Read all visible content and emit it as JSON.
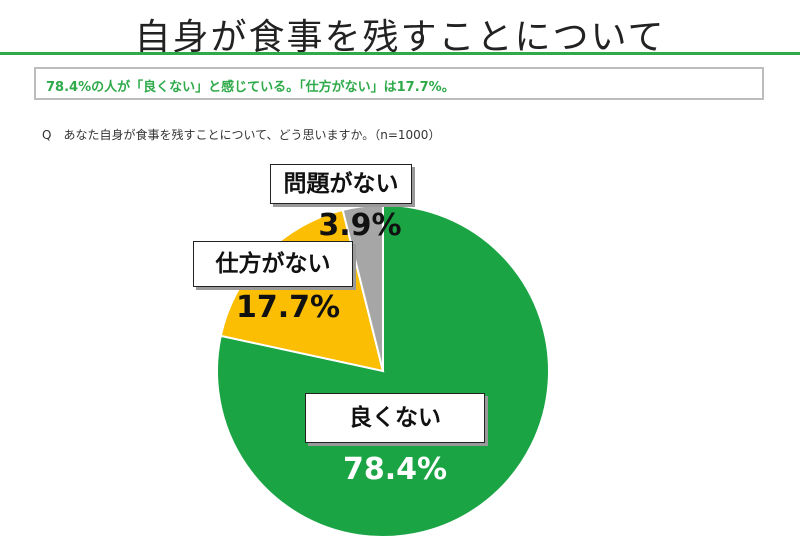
{
  "header": {
    "title": "自身が食事を残すことについて",
    "summary": "78.4%の人が「良くない」と感じている。「仕方がない」は17.7%。"
  },
  "question": "Q　あなた自身が食事を残すことについて、どう思いますか。（n=1000）",
  "colors": {
    "accent": "#2eaa4a",
    "green": "#1aa444",
    "yellow": "#fbbe02",
    "gray": "#a6a6a6"
  },
  "chart_data": {
    "type": "pie",
    "start_angle_deg": 0,
    "direction": "clockwise",
    "slices": [
      {
        "label": "良くない",
        "value": 78.4,
        "value_label": "78.4%",
        "color": "#1aa444"
      },
      {
        "label": "仕方がない",
        "value": 17.7,
        "value_label": "17.7%",
        "color": "#fbbe02"
      },
      {
        "label": "問題がない",
        "value": 3.9,
        "value_label": "3.9%",
        "color": "#a6a6a6"
      }
    ]
  }
}
